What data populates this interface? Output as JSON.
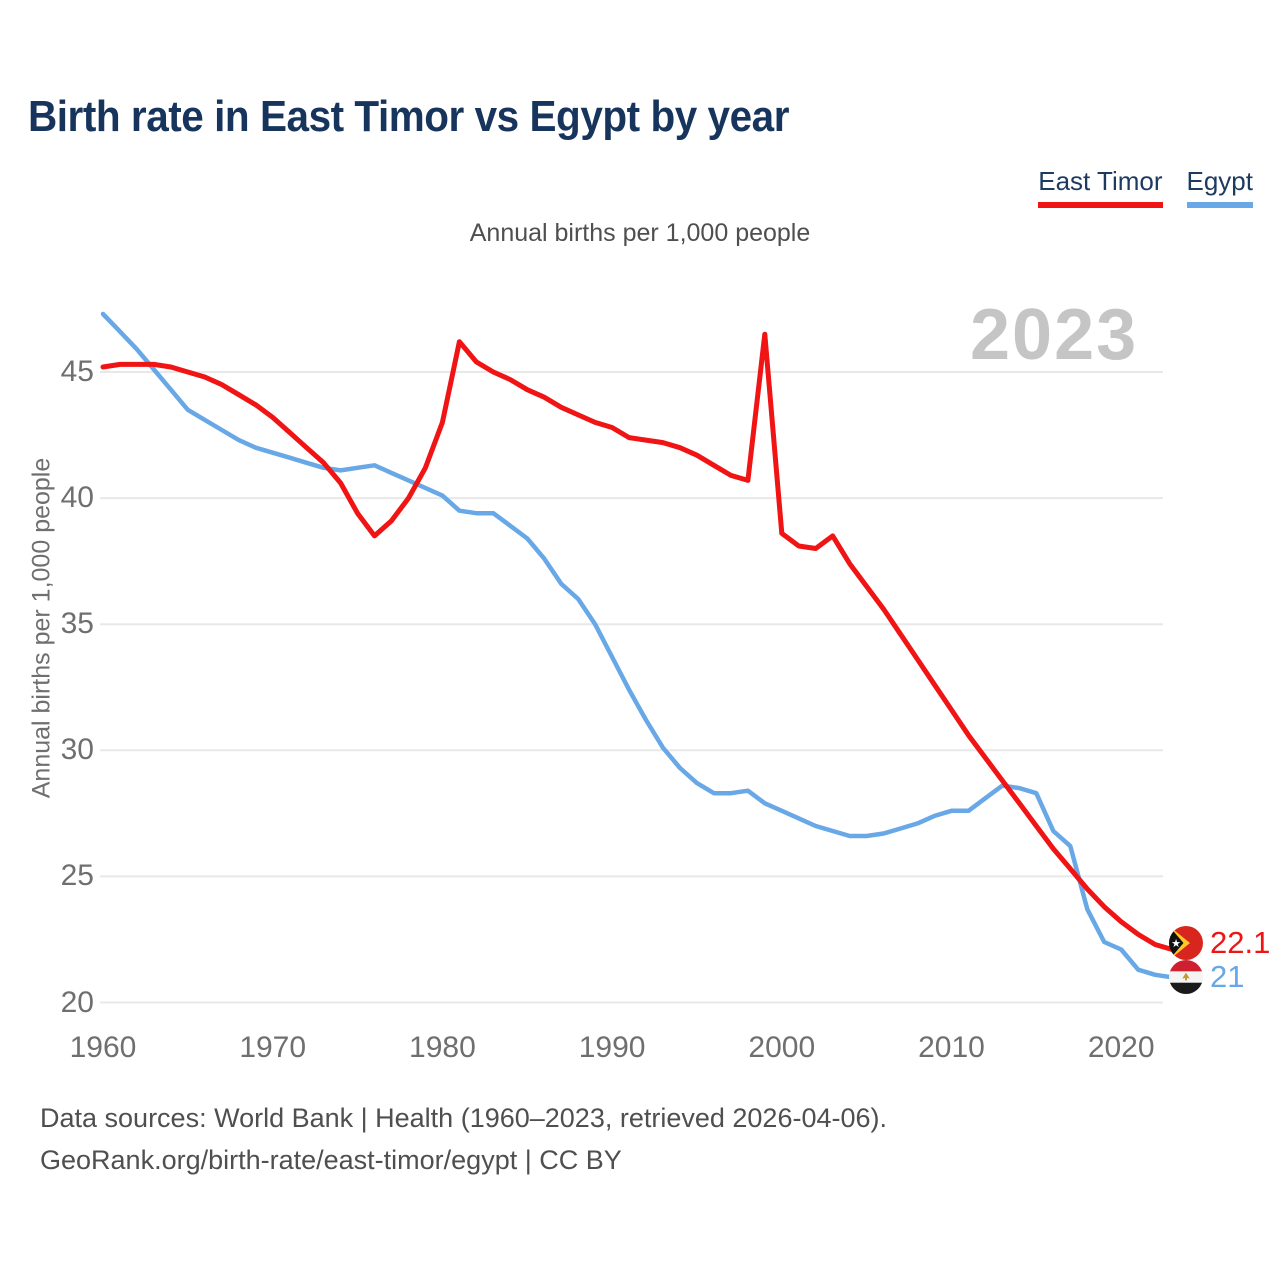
{
  "title": "Birth rate in East Timor vs Egypt by year",
  "subtitle": "Annual births per 1,000 people",
  "y_axis_label": "Annual births per 1,000 people",
  "watermark_year": "2023",
  "legend": {
    "items": [
      {
        "label": "East Timor",
        "color": "#f01414"
      },
      {
        "label": "Egypt",
        "color": "#68a8e6"
      }
    ]
  },
  "end_labels": [
    {
      "series": "East Timor",
      "value": "22.1",
      "color": "#f01414",
      "icon": "east-timor-flag-icon"
    },
    {
      "series": "Egypt",
      "value": "21",
      "color": "#68a8e6",
      "icon": "egypt-flag-icon"
    }
  ],
  "footer": {
    "line1": "Data sources: World Bank | Health (1960–2023, retrieved 2026-04-06).",
    "line2": "GeoRank.org/birth-rate/east-timor/egypt | CC BY"
  },
  "chart_data": {
    "type": "line",
    "title": "Birth rate in East Timor vs Egypt by year",
    "xlabel": "",
    "ylabel": "Annual births per 1,000 people",
    "grid": "horizontal",
    "legend_position": "top-right",
    "xlim": [
      1960,
      2023
    ],
    "ylim": [
      19.5,
      47.5
    ],
    "x_ticks": [
      1960,
      1970,
      1980,
      1990,
      2000,
      2010,
      2020
    ],
    "y_ticks": [
      20,
      25,
      30,
      35,
      40,
      45
    ],
    "years": [
      1960,
      1961,
      1962,
      1963,
      1964,
      1965,
      1966,
      1967,
      1968,
      1969,
      1970,
      1971,
      1972,
      1973,
      1974,
      1975,
      1976,
      1977,
      1978,
      1979,
      1980,
      1981,
      1982,
      1983,
      1984,
      1985,
      1986,
      1987,
      1988,
      1989,
      1990,
      1991,
      1992,
      1993,
      1994,
      1995,
      1996,
      1997,
      1998,
      1999,
      2000,
      2001,
      2002,
      2003,
      2004,
      2005,
      2006,
      2007,
      2008,
      2009,
      2010,
      2011,
      2012,
      2013,
      2014,
      2015,
      2016,
      2017,
      2018,
      2019,
      2020,
      2021,
      2022,
      2023
    ],
    "series": [
      {
        "name": "East Timor",
        "color": "#f01414",
        "stroke_width": 5,
        "values": [
          45.2,
          45.3,
          45.3,
          45.3,
          45.2,
          45.0,
          44.8,
          44.5,
          44.1,
          43.7,
          43.2,
          42.6,
          42.0,
          41.4,
          40.6,
          39.4,
          38.5,
          39.1,
          40.0,
          41.2,
          43.0,
          46.2,
          45.4,
          45.0,
          44.7,
          44.3,
          44.0,
          43.6,
          43.3,
          43.0,
          42.8,
          42.4,
          42.3,
          42.2,
          42.0,
          41.7,
          41.3,
          40.9,
          40.7,
          46.5,
          38.6,
          38.1,
          38.0,
          38.5,
          37.4,
          36.5,
          35.6,
          34.6,
          33.6,
          32.6,
          31.6,
          30.6,
          29.7,
          28.8,
          27.9,
          27.0,
          26.1,
          25.3,
          24.5,
          23.8,
          23.2,
          22.7,
          22.3,
          22.1
        ]
      },
      {
        "name": "Egypt",
        "color": "#68a8e6",
        "stroke_width": 4.5,
        "values": [
          47.3,
          46.6,
          45.9,
          45.1,
          44.3,
          43.5,
          43.1,
          42.7,
          42.3,
          42.0,
          41.8,
          41.6,
          41.4,
          41.2,
          41.1,
          41.2,
          41.3,
          41.0,
          40.7,
          40.4,
          40.1,
          39.5,
          39.4,
          39.4,
          38.9,
          38.4,
          37.6,
          36.6,
          36.0,
          35.0,
          33.7,
          32.4,
          31.2,
          30.1,
          29.3,
          28.7,
          28.3,
          28.3,
          28.4,
          27.9,
          27.6,
          27.3,
          27.0,
          26.8,
          26.6,
          26.6,
          26.7,
          26.9,
          27.1,
          27.4,
          27.6,
          27.6,
          28.1,
          28.6,
          28.5,
          28.3,
          26.8,
          26.2,
          23.7,
          22.4,
          22.1,
          21.3,
          21.1,
          21.0
        ]
      }
    ]
  }
}
